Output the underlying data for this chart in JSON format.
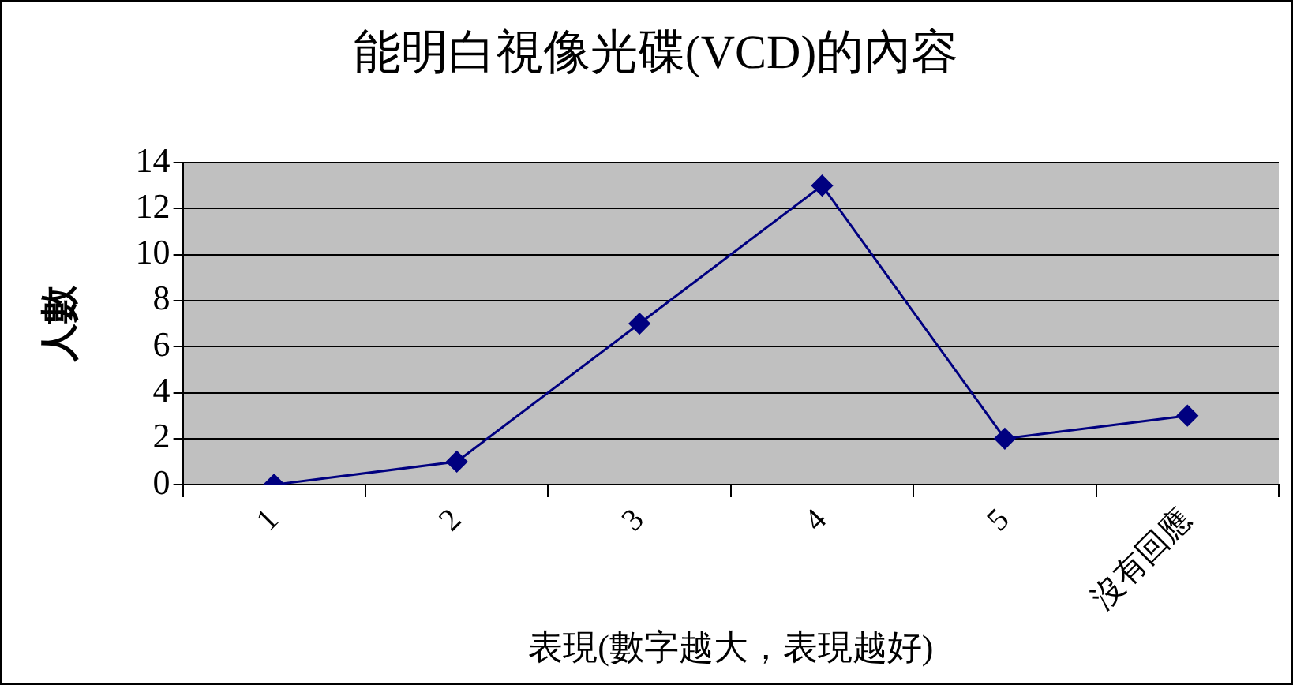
{
  "chart_data": {
    "type": "line",
    "title": "能明白視像光碟(VCD)的內容",
    "xlabel": "表現(數字越大，表現越好)",
    "ylabel": "人數",
    "categories": [
      "1",
      "2",
      "3",
      "4",
      "5",
      "沒有回應"
    ],
    "series": [
      {
        "color": "#000080",
        "values": [
          0,
          1,
          7,
          13,
          2,
          3
        ]
      }
    ],
    "ylim": [
      0,
      14
    ],
    "yticks": [
      0,
      2,
      4,
      6,
      8,
      10,
      12,
      14
    ],
    "grid": "y",
    "legend": false,
    "marker": "diamond",
    "line_style": "solid"
  }
}
